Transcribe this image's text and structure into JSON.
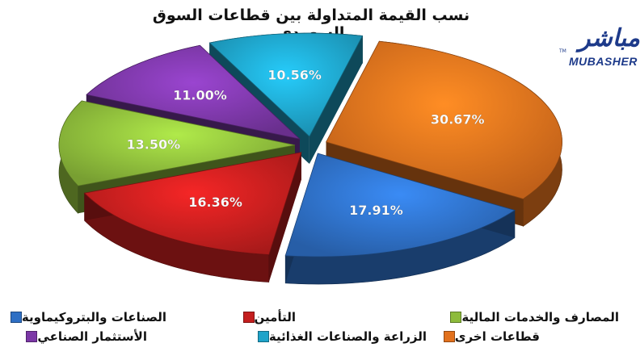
{
  "chart_data": {
    "type": "pie",
    "title": "نسب القيمة المتداولة بين قطاعات السوق السعودي",
    "slices": [
      {
        "label": "قطاعات اخرى",
        "value": 30.67,
        "value_label": "30.67%",
        "color": "#e2711d"
      },
      {
        "label": "الصناعات والبتروكيماوية",
        "value": 17.91,
        "value_label": "17.91%",
        "color": "#2e6fc4"
      },
      {
        "label": "التأمين",
        "value": 16.36,
        "value_label": "16.36%",
        "color": "#c41e1e"
      },
      {
        "label": "المصارف والخدمات المالية",
        "value": 13.5,
        "value_label": "13.50%",
        "color": "#8dbb3b"
      },
      {
        "label": "الأستثمار الصناعي",
        "value": 11.0,
        "value_label": "11.00%",
        "color": "#7b37a6"
      },
      {
        "label": "الزراعة والصناعات الغذائية",
        "value": 10.56,
        "value_label": "10.56%",
        "color": "#1ea3c9"
      }
    ],
    "legend_position": "bottom"
  },
  "logo": {
    "arabic": "مباشر",
    "english": "MUBASHER",
    "tm": "TM"
  }
}
